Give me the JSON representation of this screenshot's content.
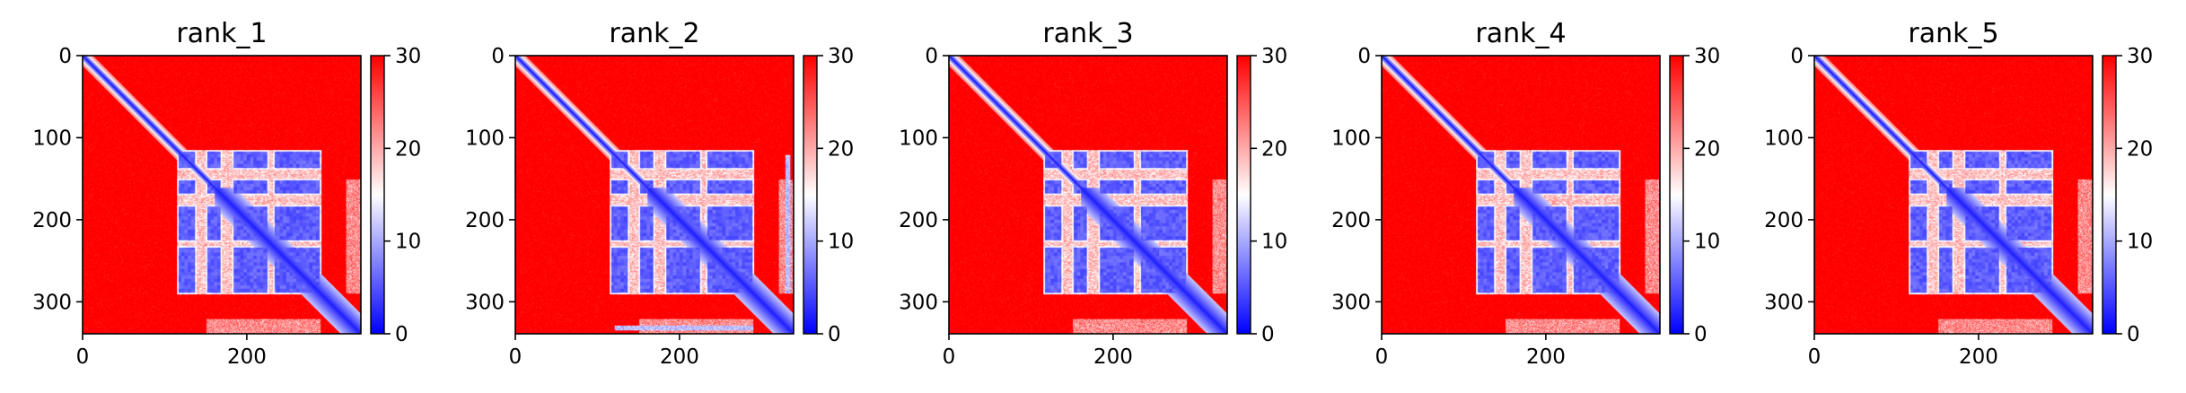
{
  "chart_data": [
    {
      "type": "heatmap",
      "title": "rank_1",
      "n": 339,
      "x_ticks": [
        0,
        200
      ],
      "y_ticks": [
        0,
        100,
        200,
        300
      ],
      "colorbar_ticks": [
        0,
        10,
        20,
        30
      ],
      "color_range": [
        0,
        30
      ],
      "colormap": "bwr",
      "colors": {
        "low": "#0000ff",
        "mid": "#ffffff",
        "high": "#ff0000"
      },
      "domain_blocks": [
        [
          115,
          138
        ],
        [
          150,
          169
        ],
        [
          182,
          226
        ],
        [
          232,
          290
        ]
      ],
      "blocks_x_extent": 290,
      "bottom_stripe": false
    },
    {
      "type": "heatmap",
      "title": "rank_2",
      "n": 339,
      "x_ticks": [
        0,
        200
      ],
      "y_ticks": [
        0,
        100,
        200,
        300
      ],
      "colorbar_ticks": [
        0,
        10,
        20,
        30
      ],
      "color_range": [
        0,
        30
      ],
      "colormap": "bwr",
      "colors": {
        "low": "#0000ff",
        "mid": "#ffffff",
        "high": "#ff0000"
      },
      "domain_blocks": [
        [
          115,
          138
        ],
        [
          150,
          169
        ],
        [
          182,
          226
        ],
        [
          232,
          290
        ]
      ],
      "blocks_x_extent": 290,
      "bottom_stripe": true
    },
    {
      "type": "heatmap",
      "title": "rank_3",
      "n": 339,
      "x_ticks": [
        0,
        200
      ],
      "y_ticks": [
        0,
        100,
        200,
        300
      ],
      "colorbar_ticks": [
        0,
        10,
        20,
        30
      ],
      "color_range": [
        0,
        30
      ],
      "colormap": "bwr",
      "colors": {
        "low": "#0000ff",
        "mid": "#ffffff",
        "high": "#ff0000"
      },
      "domain_blocks": [
        [
          115,
          138
        ],
        [
          150,
          169
        ],
        [
          182,
          226
        ],
        [
          232,
          290
        ]
      ],
      "blocks_x_extent": 290,
      "bottom_stripe": false
    },
    {
      "type": "heatmap",
      "title": "rank_4",
      "n": 339,
      "x_ticks": [
        0,
        200
      ],
      "y_ticks": [
        0,
        100,
        200,
        300
      ],
      "colorbar_ticks": [
        0,
        10,
        20,
        30
      ],
      "color_range": [
        0,
        30
      ],
      "colormap": "bwr",
      "colors": {
        "low": "#0000ff",
        "mid": "#ffffff",
        "high": "#ff0000"
      },
      "domain_blocks": [
        [
          115,
          138
        ],
        [
          150,
          169
        ],
        [
          182,
          226
        ],
        [
          232,
          290
        ]
      ],
      "blocks_x_extent": 290,
      "bottom_stripe": false
    },
    {
      "type": "heatmap",
      "title": "rank_5",
      "n": 339,
      "x_ticks": [
        0,
        200
      ],
      "y_ticks": [
        0,
        100,
        200,
        300
      ],
      "colorbar_ticks": [
        0,
        10,
        20,
        30
      ],
      "color_range": [
        0,
        30
      ],
      "colormap": "bwr",
      "colors": {
        "low": "#0000ff",
        "mid": "#ffffff",
        "high": "#ff0000"
      },
      "domain_blocks": [
        [
          115,
          138
        ],
        [
          150,
          169
        ],
        [
          182,
          226
        ],
        [
          232,
          290
        ]
      ],
      "blocks_x_extent": 290,
      "bottom_stripe": false
    }
  ]
}
